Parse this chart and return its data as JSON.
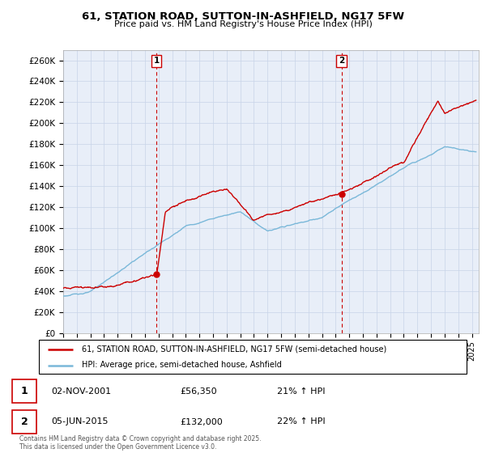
{
  "title": "61, STATION ROAD, SUTTON-IN-ASHFIELD, NG17 5FW",
  "subtitle": "Price paid vs. HM Land Registry's House Price Index (HPI)",
  "xlim_start": 1995.0,
  "xlim_end": 2025.5,
  "ylim_min": 0,
  "ylim_max": 270000,
  "yticks": [
    0,
    20000,
    40000,
    60000,
    80000,
    100000,
    120000,
    140000,
    160000,
    180000,
    200000,
    220000,
    240000,
    260000
  ],
  "ytick_labels": [
    "£0",
    "£20K",
    "£40K",
    "£60K",
    "£80K",
    "£100K",
    "£120K",
    "£140K",
    "£160K",
    "£180K",
    "£200K",
    "£220K",
    "£240K",
    "£260K"
  ],
  "hpi_color": "#7ab8d9",
  "price_color": "#cc0000",
  "purchase1_date": 2001.84,
  "purchase1_price": 56350,
  "purchase1_label": "1",
  "purchase2_date": 2015.43,
  "purchase2_price": 132000,
  "purchase2_label": "2",
  "legend_line1": "61, STATION ROAD, SUTTON-IN-ASHFIELD, NG17 5FW (semi-detached house)",
  "legend_line2": "HPI: Average price, semi-detached house, Ashfield",
  "bg_color": "#ffffff",
  "chart_bg_color": "#e8eef8",
  "grid_color": "#c8d4e8",
  "vline_color": "#cc0000",
  "footer": "Contains HM Land Registry data © Crown copyright and database right 2025.\nThis data is licensed under the Open Government Licence v3.0."
}
